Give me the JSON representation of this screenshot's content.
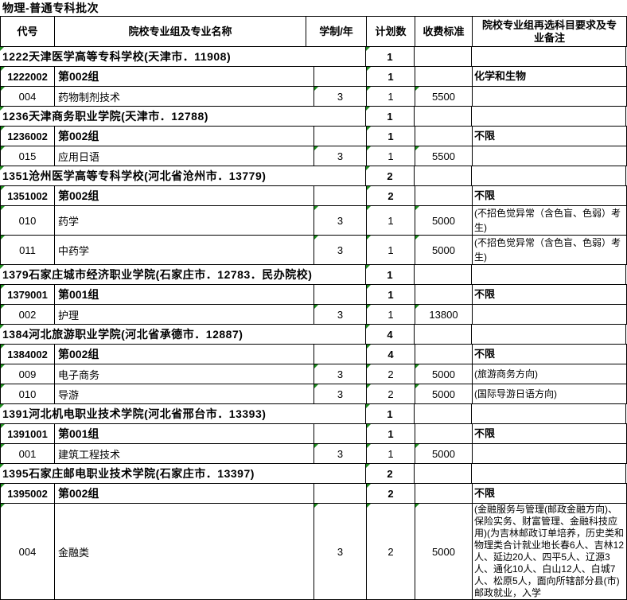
{
  "title": "物理-普通专科批次",
  "colors": {
    "grid": "#000000",
    "error_indicator_green": "#1e8c1e",
    "background": "#ffffff",
    "text": "#000000"
  },
  "table": {
    "columns": [
      "代号",
      "院校专业组及专业名称",
      "学制/年",
      "计划数",
      "收费标准",
      "院校专业组再选科目要求及专业备注"
    ],
    "rows": [
      {
        "type": "school",
        "name": "1222天津医学高等专科学校(天津市．11908)",
        "plan": "1"
      },
      {
        "type": "group",
        "code": "1222002",
        "name": "第002组",
        "plan": "1",
        "note": "化学和生物"
      },
      {
        "type": "major",
        "code": "004",
        "name": "药物制剂技术",
        "years": "3",
        "plan": "1",
        "fee": "5500",
        "note": ""
      },
      {
        "type": "school",
        "name": "1236天津商务职业学院(天津市．12788)",
        "plan": "1"
      },
      {
        "type": "group",
        "code": "1236002",
        "name": "第002组",
        "plan": "1",
        "note": "不限"
      },
      {
        "type": "major",
        "code": "015",
        "name": "应用日语",
        "years": "3",
        "plan": "1",
        "fee": "5500",
        "note": ""
      },
      {
        "type": "school",
        "name": "1351沧州医学高等专科学校(河北省沧州市．13779)",
        "plan": "2"
      },
      {
        "type": "group",
        "code": "1351002",
        "name": "第002组",
        "plan": "2",
        "note": "不限"
      },
      {
        "type": "major",
        "code": "010",
        "name": "药学",
        "years": "3",
        "plan": "1",
        "fee": "5000",
        "note": "(不招色觉异常（含色盲、色弱）考生)"
      },
      {
        "type": "major",
        "code": "011",
        "name": "中药学",
        "years": "3",
        "plan": "1",
        "fee": "5000",
        "note": "(不招色觉异常（含色盲、色弱）考生)"
      },
      {
        "type": "school",
        "name": "1379石家庄城市经济职业学院(石家庄市．12783．民办院校)",
        "plan": "1"
      },
      {
        "type": "group",
        "code": "1379001",
        "name": "第001组",
        "plan": "1",
        "note": "不限"
      },
      {
        "type": "major",
        "code": "002",
        "name": "护理",
        "years": "3",
        "plan": "1",
        "fee": "13800",
        "note": ""
      },
      {
        "type": "school",
        "name": "1384河北旅游职业学院(河北省承德市．12887)",
        "plan": "4"
      },
      {
        "type": "group",
        "code": "1384002",
        "name": "第002组",
        "plan": "4",
        "note": "不限"
      },
      {
        "type": "major",
        "code": "009",
        "name": "电子商务",
        "years": "3",
        "plan": "2",
        "fee": "5000",
        "note": "(旅游商务方向)"
      },
      {
        "type": "major",
        "code": "010",
        "name": "导游",
        "years": "3",
        "plan": "2",
        "fee": "5000",
        "note": "(国际导游日语方向)"
      },
      {
        "type": "school",
        "name": "1391河北机电职业技术学院(河北省邢台市．13393)",
        "plan": "1"
      },
      {
        "type": "group",
        "code": "1391001",
        "name": "第001组",
        "plan": "1",
        "note": "不限"
      },
      {
        "type": "major",
        "code": "001",
        "name": "建筑工程技术",
        "years": "3",
        "plan": "1",
        "fee": "5000",
        "note": ""
      },
      {
        "type": "school",
        "name": "1395石家庄邮电职业技术学院(石家庄市．13397)",
        "plan": "2"
      },
      {
        "type": "group",
        "code": "1395002",
        "name": "第002组",
        "plan": "2",
        "note": "不限"
      },
      {
        "type": "major",
        "code": "004",
        "name": "金融类",
        "years": "3",
        "plan": "2",
        "fee": "5000",
        "note": "(金融服务与管理(邮政金融方向)、保险实务、财富管理、金融科技应用)(为吉林邮政订单培养，历史类和物理类合计就业地长春6人、吉林12人、延边20人、四平5人、辽源3人、通化10人、白山12人、白城7人、松原5人，面向所辖部分县(市)邮政就业，入学"
      }
    ]
  }
}
